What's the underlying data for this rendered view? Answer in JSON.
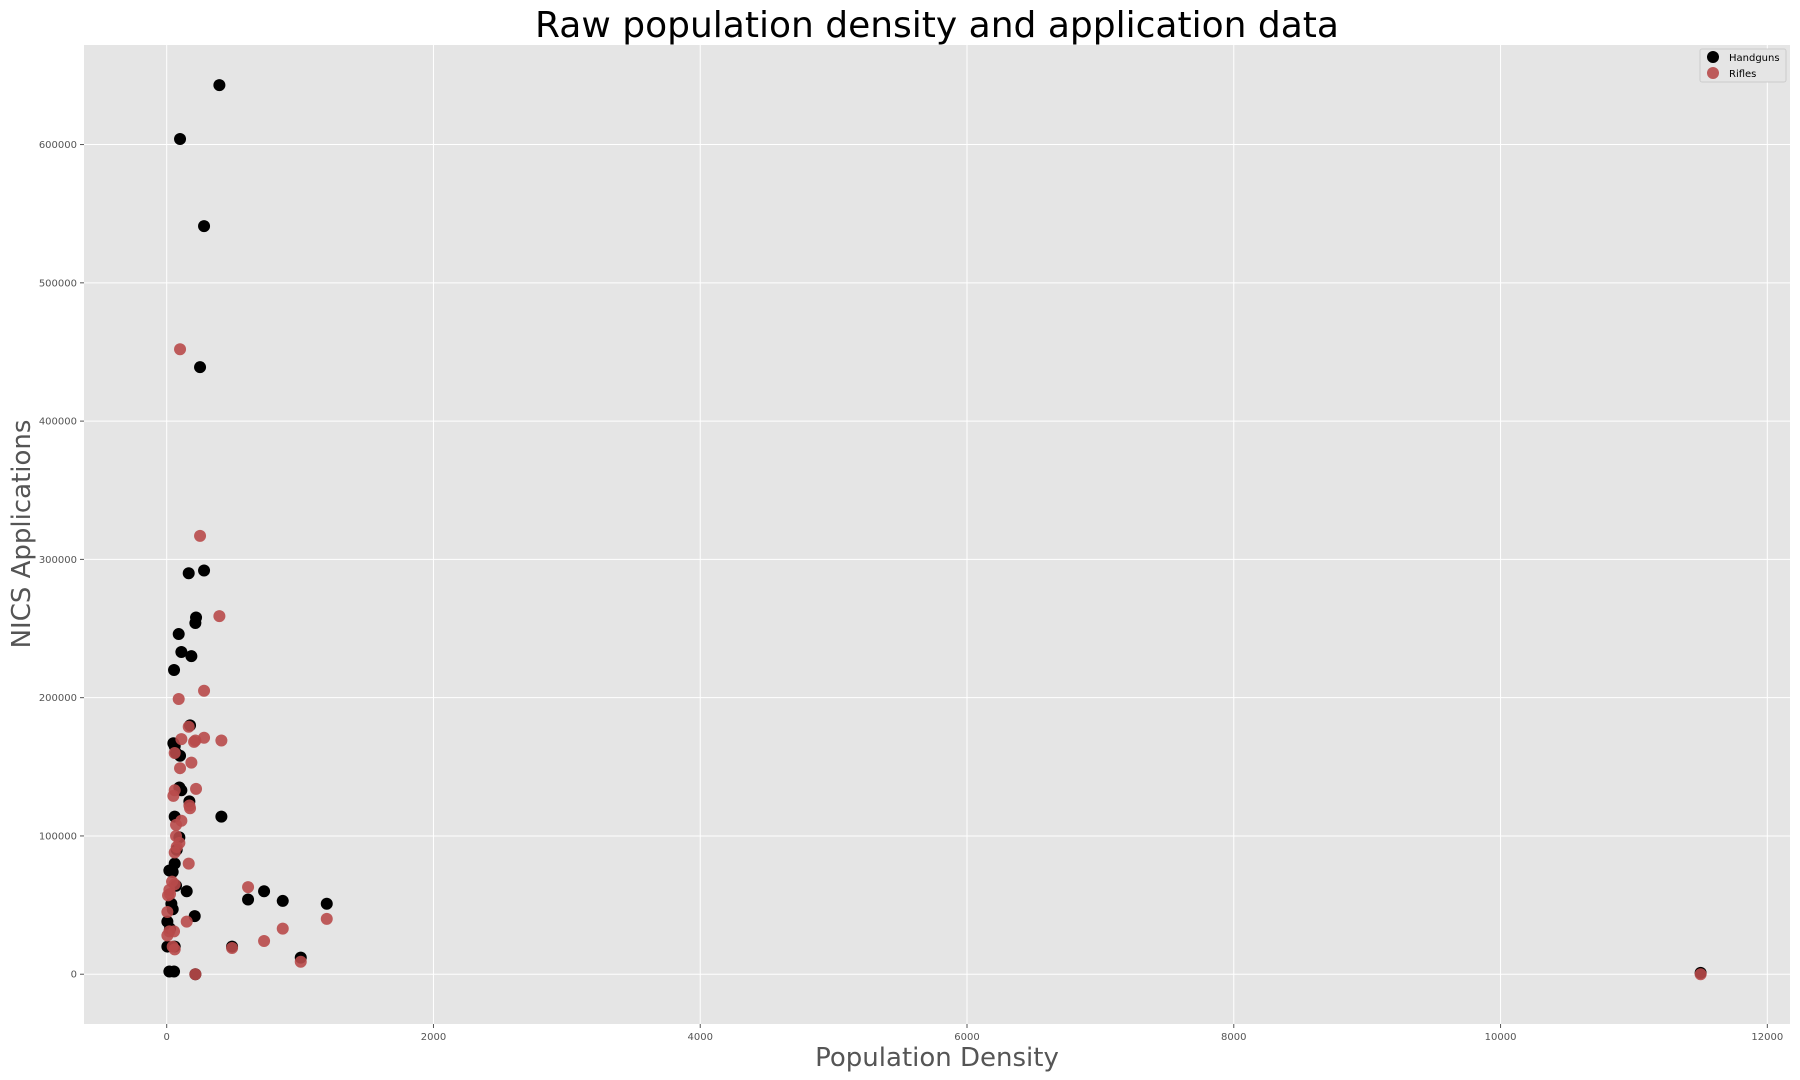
{
  "chart_data": {
    "type": "scatter",
    "title": "Raw population density and application data",
    "xlabel": "Population Density",
    "ylabel": "NICS Applications",
    "xlim": [
      -620,
      12170
    ],
    "ylim": [
      -36000,
      672000
    ],
    "xticks": [
      0,
      2000,
      4000,
      6000,
      8000,
      10000,
      12000
    ],
    "yticks": [
      0,
      100000,
      200000,
      300000,
      400000,
      500000,
      600000
    ],
    "grid": true,
    "legend_position": "top-right",
    "colors": {
      "background": "#e5e5e5",
      "grid": "#ffffff",
      "handguns": "#000000",
      "rifles": "#b84a4a"
    },
    "series": [
      {
        "name": "Handguns",
        "color": "#000000",
        "points": [
          [
            395,
            643000
          ],
          [
            100,
            604000
          ],
          [
            280,
            541000
          ],
          [
            250,
            439000
          ],
          [
            280,
            292000
          ],
          [
            165,
            290000
          ],
          [
            220,
            258000
          ],
          [
            215,
            254000
          ],
          [
            90,
            246000
          ],
          [
            110,
            233000
          ],
          [
            185,
            230000
          ],
          [
            55,
            220000
          ],
          [
            175,
            180000
          ],
          [
            50,
            167000
          ],
          [
            60,
            165000
          ],
          [
            70,
            160000
          ],
          [
            100,
            158000
          ],
          [
            95,
            135000
          ],
          [
            110,
            133000
          ],
          [
            170,
            125000
          ],
          [
            410,
            114000
          ],
          [
            60,
            114000
          ],
          [
            95,
            99000
          ],
          [
            75,
            90000
          ],
          [
            60,
            80000
          ],
          [
            20,
            75000
          ],
          [
            45,
            74000
          ],
          [
            70,
            64000
          ],
          [
            150,
            60000
          ],
          [
            730,
            60000
          ],
          [
            870,
            53000
          ],
          [
            610,
            54000
          ],
          [
            1200,
            51000
          ],
          [
            35,
            51000
          ],
          [
            45,
            47000
          ],
          [
            210,
            42000
          ],
          [
            5,
            38000
          ],
          [
            25,
            33000
          ],
          [
            490,
            20000
          ],
          [
            60,
            20000
          ],
          [
            5,
            20000
          ],
          [
            1005,
            12000
          ],
          [
            20,
            2000
          ],
          [
            55,
            2000
          ],
          [
            215,
            0
          ],
          [
            11500,
            1000
          ]
        ]
      },
      {
        "name": "Rifles",
        "color": "#b84a4a",
        "points": [
          [
            100,
            452000
          ],
          [
            250,
            317000
          ],
          [
            395,
            259000
          ],
          [
            280,
            205000
          ],
          [
            90,
            199000
          ],
          [
            165,
            179000
          ],
          [
            110,
            170000
          ],
          [
            280,
            171000
          ],
          [
            410,
            169000
          ],
          [
            215,
            169000
          ],
          [
            205,
            168000
          ],
          [
            60,
            160000
          ],
          [
            185,
            153000
          ],
          [
            100,
            149000
          ],
          [
            220,
            134000
          ],
          [
            60,
            133000
          ],
          [
            50,
            129000
          ],
          [
            170,
            122000
          ],
          [
            175,
            120000
          ],
          [
            110,
            111000
          ],
          [
            70,
            108000
          ],
          [
            70,
            100000
          ],
          [
            95,
            95000
          ],
          [
            75,
            92000
          ],
          [
            60,
            88000
          ],
          [
            165,
            80000
          ],
          [
            40,
            67000
          ],
          [
            60,
            65000
          ],
          [
            610,
            63000
          ],
          [
            20,
            61000
          ],
          [
            25,
            58000
          ],
          [
            10,
            57000
          ],
          [
            1200,
            40000
          ],
          [
            150,
            38000
          ],
          [
            5,
            45000
          ],
          [
            870,
            33000
          ],
          [
            20,
            31000
          ],
          [
            55,
            31000
          ],
          [
            5,
            28000
          ],
          [
            730,
            24000
          ],
          [
            45,
            20000
          ],
          [
            60,
            18000
          ],
          [
            490,
            19000
          ],
          [
            1005,
            9000
          ],
          [
            215,
            0
          ],
          [
            11500,
            0
          ]
        ]
      }
    ]
  }
}
